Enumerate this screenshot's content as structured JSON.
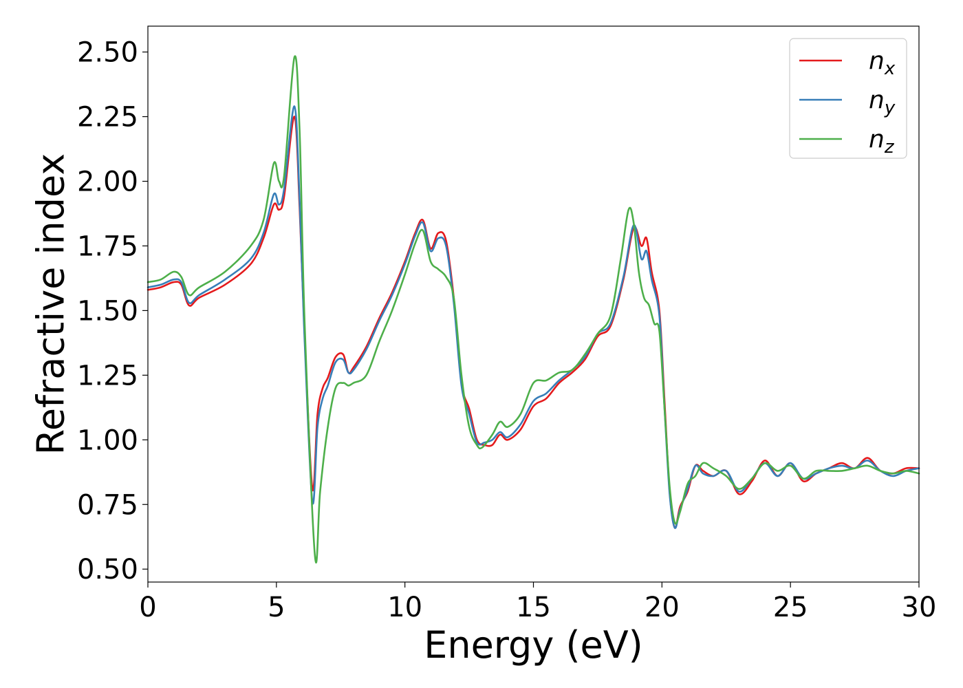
{
  "chart_data": {
    "type": "line",
    "title": "",
    "xlabel": "Energy (eV)",
    "ylabel": "Refractive index",
    "xlim": [
      0,
      30
    ],
    "ylim": [
      0.45,
      2.6
    ],
    "xticks": [
      0,
      5,
      10,
      15,
      20,
      25,
      30
    ],
    "yticks": [
      0.5,
      0.75,
      1.0,
      1.25,
      1.5,
      1.75,
      2.0,
      2.25,
      2.5
    ],
    "xtick_labels": [
      "0",
      "5",
      "10",
      "15",
      "20",
      "25",
      "30"
    ],
    "ytick_labels": [
      "0.50",
      "0.75",
      "1.00",
      "1.25",
      "1.50",
      "1.75",
      "2.00",
      "2.25",
      "2.50"
    ],
    "grid": false,
    "legend": {
      "position": "top-right",
      "entries": [
        {
          "base": "n",
          "sub": "x"
        },
        {
          "base": "n",
          "sub": "y"
        },
        {
          "base": "n",
          "sub": "z"
        }
      ]
    },
    "series": [
      {
        "name": "n_x",
        "color": "#e41a1c",
        "x": [
          0,
          0.5,
          1.0,
          1.3,
          1.6,
          2.0,
          3.0,
          4.0,
          4.5,
          4.9,
          5.1,
          5.3,
          5.7,
          5.9,
          6.1,
          6.4,
          6.6,
          6.8,
          7.0,
          7.3,
          7.6,
          7.8,
          8.0,
          8.5,
          9.0,
          9.5,
          10.0,
          10.4,
          10.7,
          11.0,
          11.3,
          11.6,
          11.9,
          12.2,
          12.5,
          12.8,
          13.1,
          13.4,
          13.7,
          14.0,
          14.5,
          15.0,
          15.5,
          16.0,
          16.5,
          17.0,
          17.5,
          18.0,
          18.5,
          18.9,
          19.2,
          19.4,
          19.6,
          19.9,
          20.1,
          20.3,
          20.5,
          20.7,
          21.0,
          21.3,
          21.6,
          22.0,
          22.5,
          23.0,
          23.5,
          24.0,
          24.5,
          25.0,
          25.5,
          26.0,
          26.5,
          27.0,
          27.5,
          28.0,
          28.5,
          29.0,
          29.5,
          30.0
        ],
        "y": [
          1.58,
          1.59,
          1.61,
          1.6,
          1.52,
          1.55,
          1.6,
          1.68,
          1.78,
          1.91,
          1.89,
          1.94,
          2.25,
          1.9,
          1.4,
          0.81,
          1.1,
          1.2,
          1.24,
          1.32,
          1.33,
          1.26,
          1.28,
          1.36,
          1.47,
          1.57,
          1.69,
          1.8,
          1.85,
          1.74,
          1.8,
          1.77,
          1.55,
          1.22,
          1.12,
          1.0,
          0.98,
          0.98,
          1.02,
          1.0,
          1.04,
          1.13,
          1.16,
          1.22,
          1.26,
          1.31,
          1.4,
          1.44,
          1.62,
          1.82,
          1.75,
          1.78,
          1.65,
          1.5,
          1.15,
          0.8,
          0.66,
          0.74,
          0.8,
          0.9,
          0.88,
          0.86,
          0.88,
          0.79,
          0.84,
          0.92,
          0.86,
          0.91,
          0.84,
          0.87,
          0.89,
          0.91,
          0.89,
          0.93,
          0.88,
          0.87,
          0.89,
          0.89
        ]
      },
      {
        "name": "n_y",
        "color": "#377eb8",
        "x": [
          0,
          0.5,
          1.0,
          1.3,
          1.6,
          2.0,
          3.0,
          4.0,
          4.5,
          4.9,
          5.1,
          5.3,
          5.7,
          5.9,
          6.1,
          6.4,
          6.6,
          6.8,
          7.0,
          7.3,
          7.6,
          7.8,
          8.0,
          8.5,
          9.0,
          9.5,
          10.0,
          10.4,
          10.7,
          11.0,
          11.3,
          11.6,
          11.9,
          12.2,
          12.5,
          12.8,
          13.1,
          13.4,
          13.7,
          14.0,
          14.5,
          15.0,
          15.5,
          16.0,
          16.5,
          17.0,
          17.5,
          18.0,
          18.5,
          18.9,
          19.2,
          19.4,
          19.6,
          19.9,
          20.1,
          20.3,
          20.5,
          20.7,
          21.0,
          21.3,
          21.6,
          22.0,
          22.5,
          23.0,
          23.5,
          24.0,
          24.5,
          25.0,
          25.5,
          26.0,
          26.5,
          27.0,
          27.5,
          28.0,
          28.5,
          29.0,
          29.5,
          30.0
        ],
        "y": [
          1.59,
          1.6,
          1.62,
          1.61,
          1.53,
          1.56,
          1.62,
          1.7,
          1.8,
          1.95,
          1.91,
          1.97,
          2.29,
          1.93,
          1.38,
          0.76,
          1.05,
          1.16,
          1.21,
          1.3,
          1.31,
          1.26,
          1.27,
          1.35,
          1.46,
          1.56,
          1.68,
          1.79,
          1.84,
          1.73,
          1.78,
          1.75,
          1.53,
          1.21,
          1.1,
          0.99,
          0.99,
          1.0,
          1.03,
          1.01,
          1.06,
          1.15,
          1.18,
          1.23,
          1.27,
          1.32,
          1.41,
          1.45,
          1.63,
          1.83,
          1.7,
          1.73,
          1.62,
          1.48,
          1.12,
          0.79,
          0.66,
          0.73,
          0.81,
          0.9,
          0.87,
          0.86,
          0.88,
          0.8,
          0.85,
          0.91,
          0.86,
          0.91,
          0.85,
          0.87,
          0.89,
          0.9,
          0.89,
          0.92,
          0.88,
          0.86,
          0.88,
          0.89
        ]
      },
      {
        "name": "n_z",
        "color": "#4daf4a",
        "x": [
          0,
          0.5,
          1.0,
          1.3,
          1.6,
          2.0,
          3.0,
          4.0,
          4.5,
          4.9,
          5.1,
          5.3,
          5.7,
          5.9,
          6.1,
          6.5,
          6.7,
          7.0,
          7.3,
          7.6,
          7.8,
          8.0,
          8.5,
          9.0,
          9.5,
          10.0,
          10.4,
          10.7,
          11.0,
          11.3,
          11.6,
          11.9,
          12.2,
          12.5,
          12.8,
          13.0,
          13.4,
          13.7,
          14.0,
          14.5,
          15.0,
          15.5,
          16.0,
          16.5,
          17.0,
          17.5,
          18.0,
          18.4,
          18.7,
          18.9,
          19.1,
          19.3,
          19.5,
          19.7,
          19.9,
          20.1,
          20.3,
          20.5,
          20.7,
          21.0,
          21.3,
          21.6,
          22.0,
          22.5,
          23.0,
          23.5,
          24.0,
          24.5,
          25.0,
          25.5,
          26.0,
          26.5,
          27.0,
          27.5,
          28.0,
          28.5,
          29.0,
          29.5,
          30.0
        ],
        "y": [
          1.61,
          1.62,
          1.65,
          1.63,
          1.56,
          1.59,
          1.65,
          1.75,
          1.85,
          2.07,
          2.0,
          2.02,
          2.48,
          2.2,
          1.45,
          0.55,
          0.8,
          1.05,
          1.2,
          1.22,
          1.21,
          1.22,
          1.25,
          1.38,
          1.5,
          1.64,
          1.76,
          1.81,
          1.69,
          1.66,
          1.63,
          1.55,
          1.25,
          1.05,
          0.98,
          0.97,
          1.02,
          1.07,
          1.05,
          1.1,
          1.22,
          1.23,
          1.26,
          1.27,
          1.33,
          1.41,
          1.48,
          1.7,
          1.89,
          1.84,
          1.65,
          1.55,
          1.52,
          1.45,
          1.42,
          1.12,
          0.82,
          0.68,
          0.72,
          0.83,
          0.86,
          0.91,
          0.89,
          0.86,
          0.81,
          0.85,
          0.91,
          0.88,
          0.9,
          0.85,
          0.88,
          0.88,
          0.88,
          0.89,
          0.9,
          0.88,
          0.87,
          0.88,
          0.87
        ]
      }
    ]
  }
}
